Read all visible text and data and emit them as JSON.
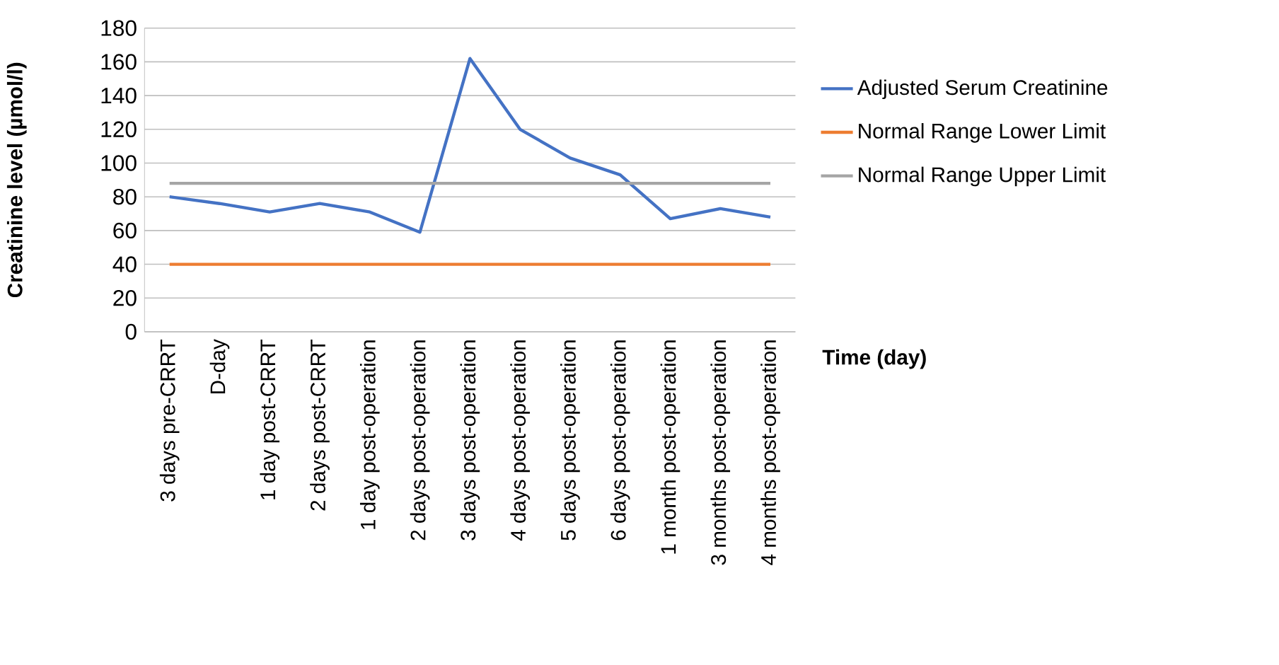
{
  "chart_data": {
    "type": "line",
    "xlabel": "Time (day)",
    "ylabel": "Creatinine level (µmol/l)",
    "categories": [
      "3 days pre-CRRT",
      "D-day",
      "1 day post-CRRT",
      "2 days post-CRRT",
      "1 day post-operation",
      "2 days post-operation",
      "3 days post-operation",
      "4 days post-operation",
      "5 days post-operation",
      "6 days post-operation",
      "1 month post-operation",
      "3 months post-operation",
      "4 months post-operation"
    ],
    "series": [
      {
        "name": "Adjusted Serum Creatinine",
        "color": "#4472c4",
        "values": [
          80,
          76,
          71,
          76,
          71,
          59,
          162,
          120,
          103,
          93,
          67,
          73,
          68
        ]
      },
      {
        "name": "Normal Range Lower Limit",
        "color": "#ed7d31",
        "values": [
          40,
          40,
          40,
          40,
          40,
          40,
          40,
          40,
          40,
          40,
          40,
          40,
          40
        ]
      },
      {
        "name": "Normal Range Upper Limit",
        "color": "#a5a5a5",
        "values": [
          88,
          88,
          88,
          88,
          88,
          88,
          88,
          88,
          88,
          88,
          88,
          88,
          88
        ]
      }
    ],
    "ylim": [
      0,
      180
    ],
    "yticks": [
      0,
      20,
      40,
      60,
      80,
      100,
      120,
      140,
      160,
      180
    ],
    "grid": "y",
    "legend": "right"
  }
}
